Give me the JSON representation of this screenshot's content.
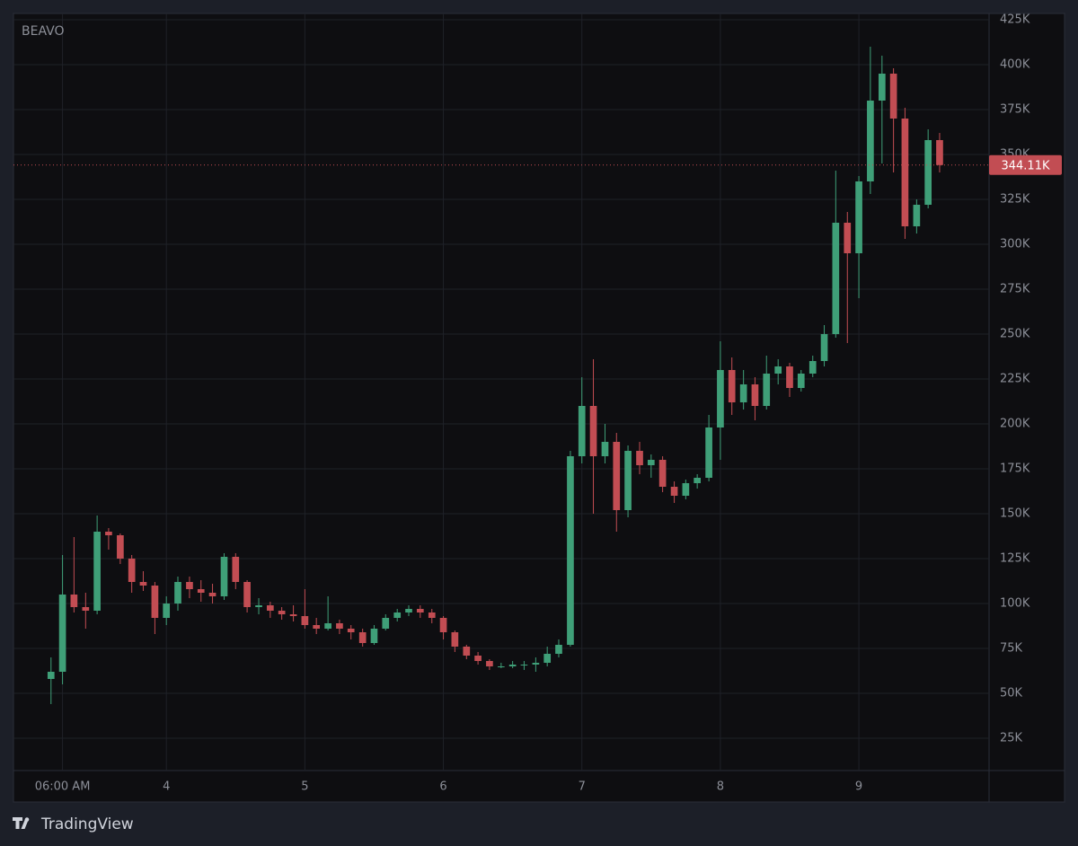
{
  "chart_data": {
    "type": "candlestick",
    "symbol": "BEAVO",
    "watermark": "TradingView",
    "up_color": "#3f9f78",
    "down_color": "#c24d53",
    "grid": true,
    "xlim": [
      2.896,
      9.94
    ],
    "ylim": [
      7,
      428.5
    ],
    "xticks": [
      {
        "value": 3.25,
        "label": "06:00 AM"
      },
      4,
      5,
      6,
      7,
      8,
      9
    ],
    "yticks": [
      {
        "value": 25,
        "label": "25K"
      },
      {
        "value": 50,
        "label": "50K"
      },
      {
        "value": 75,
        "label": "75K"
      },
      {
        "value": 100,
        "label": "100K"
      },
      {
        "value": 125,
        "label": "125K"
      },
      {
        "value": 150,
        "label": "150K"
      },
      {
        "value": 175,
        "label": "175K"
      },
      {
        "value": 200,
        "label": "200K"
      },
      {
        "value": 225,
        "label": "225K"
      },
      {
        "value": 250,
        "label": "250K"
      },
      {
        "value": 275,
        "label": "275K"
      },
      {
        "value": 300,
        "label": "300K"
      },
      {
        "value": 325,
        "label": "325K"
      },
      {
        "value": 350,
        "label": "350K"
      },
      {
        "value": 375,
        "label": "375K"
      },
      {
        "value": 400,
        "label": "400K"
      },
      {
        "value": 425,
        "label": "425K"
      }
    ],
    "last_price": {
      "value": 344.11,
      "label": "344.11K"
    },
    "x": [
      3.167,
      3.25,
      3.333,
      3.417,
      3.5,
      3.583,
      3.667,
      3.75,
      3.833,
      3.917,
      4.0,
      4.083,
      4.167,
      4.25,
      4.333,
      4.417,
      4.5,
      4.583,
      4.667,
      4.75,
      4.833,
      4.917,
      5.0,
      5.083,
      5.167,
      5.25,
      5.333,
      5.417,
      5.5,
      5.583,
      5.667,
      5.75,
      5.833,
      5.917,
      6.0,
      6.083,
      6.167,
      6.25,
      6.333,
      6.417,
      6.5,
      6.583,
      6.667,
      6.75,
      6.833,
      6.917,
      7.0,
      7.083,
      7.167,
      7.25,
      7.333,
      7.417,
      7.5,
      7.583,
      7.667,
      7.75,
      7.833,
      7.917,
      8.0,
      8.083,
      8.167,
      8.25,
      8.333,
      8.417,
      8.5,
      8.583,
      8.667,
      8.75,
      8.833,
      8.917,
      9.0,
      9.083,
      9.167,
      9.25,
      9.333,
      9.417,
      9.5,
      9.583
    ],
    "open": [
      58,
      62,
      105,
      98,
      96,
      140,
      138,
      125,
      112,
      110,
      92,
      100,
      112,
      108,
      106,
      104,
      126,
      112,
      98,
      99,
      96,
      94,
      93,
      88,
      86,
      89,
      86,
      84,
      78,
      86,
      92,
      95,
      97,
      95,
      92,
      84,
      76,
      71,
      68,
      65,
      65,
      66,
      66,
      67,
      72,
      77,
      182,
      210,
      182,
      190,
      152,
      185,
      177,
      180,
      165,
      160,
      167,
      170,
      198,
      230,
      212,
      222,
      210,
      228,
      232,
      220,
      228,
      235,
      250,
      312,
      295,
      335,
      380,
      395,
      370,
      310,
      322,
      358
    ],
    "high": [
      70,
      127,
      137,
      106,
      149,
      142,
      139,
      127,
      118,
      112,
      104,
      115,
      115,
      113,
      111,
      128,
      128,
      113,
      103,
      101,
      98,
      99,
      108,
      92,
      104,
      91,
      88,
      86,
      88,
      94,
      97,
      99,
      99,
      97,
      93,
      85,
      77,
      73,
      69,
      67,
      68,
      68,
      70,
      76,
      80,
      185,
      226,
      236,
      200,
      195,
      188,
      190,
      183,
      182,
      168,
      169,
      172,
      205,
      246,
      237,
      230,
      226,
      238,
      236,
      234,
      230,
      238,
      255,
      341,
      318,
      338,
      410,
      405,
      398,
      376,
      325,
      364,
      362
    ],
    "low": [
      44,
      55,
      95,
      86,
      94,
      130,
      122,
      106,
      107,
      83,
      88,
      96,
      103,
      101,
      100,
      102,
      108,
      95,
      94,
      92,
      91,
      90,
      86,
      83,
      85,
      83,
      80,
      76,
      77,
      85,
      90,
      93,
      92,
      89,
      80,
      73,
      69,
      66,
      63,
      64,
      64,
      63,
      62,
      65,
      70,
      76,
      178,
      150,
      178,
      140,
      148,
      172,
      170,
      162,
      156,
      158,
      164,
      168,
      180,
      205,
      208,
      202,
      208,
      222,
      215,
      218,
      226,
      232,
      248,
      245,
      270,
      328,
      345,
      340,
      303,
      306,
      320,
      340
    ],
    "close": [
      62,
      105,
      98,
      96,
      140,
      138,
      125,
      112,
      110,
      92,
      100,
      112,
      108,
      106,
      104,
      126,
      112,
      98,
      99,
      96,
      94,
      93,
      88,
      86,
      89,
      86,
      84,
      78,
      86,
      92,
      95,
      97,
      95,
      92,
      84,
      76,
      71,
      68,
      65,
      65,
      66,
      66,
      67,
      72,
      77,
      182,
      210,
      182,
      190,
      152,
      185,
      177,
      180,
      165,
      160,
      167,
      170,
      198,
      230,
      212,
      222,
      210,
      228,
      232,
      220,
      228,
      235,
      250,
      312,
      295,
      335,
      380,
      395,
      370,
      310,
      322,
      358,
      344.11
    ]
  }
}
